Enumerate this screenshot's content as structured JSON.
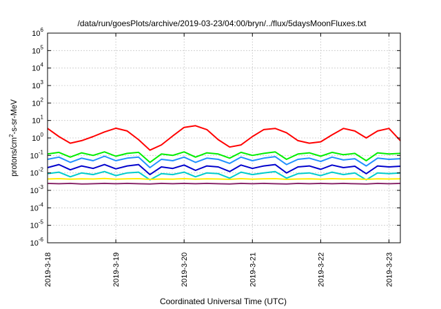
{
  "chart_data": {
    "type": "line",
    "title": "/data/run/goesPlots/archive/2019-03-23/04:00/bryn/../flux/5daysMoonFluxes.txt",
    "xlabel": "Coordinated Universal Time (UTC)",
    "ylabel_main": "protons/cm",
    "ylabel_sup": "2",
    "ylabel_tail": "-s-sr-MeV",
    "yscale": "log",
    "ylim": [
      1e-06,
      1000000.0
    ],
    "xlim": [
      "2019-03-18T00:00",
      "2019-03-23T04:00"
    ],
    "grid": true,
    "y_ticks": [
      {
        "exp": -6,
        "base": "10",
        "sup": "-6"
      },
      {
        "exp": -5,
        "base": "10",
        "sup": "-5"
      },
      {
        "exp": -4,
        "base": "10",
        "sup": "-4"
      },
      {
        "exp": -3,
        "base": "10",
        "sup": "-3"
      },
      {
        "exp": -2,
        "base": "10",
        "sup": "-2"
      },
      {
        "exp": -1,
        "base": "10",
        "sup": "-1"
      },
      {
        "exp": 0,
        "base": "10",
        "sup": "0"
      },
      {
        "exp": 1,
        "base": "10",
        "sup": "1"
      },
      {
        "exp": 2,
        "base": "10",
        "sup": "2"
      },
      {
        "exp": 3,
        "base": "10",
        "sup": "3"
      },
      {
        "exp": 4,
        "base": "10",
        "sup": "4"
      },
      {
        "exp": 5,
        "base": "10",
        "sup": "5"
      },
      {
        "exp": 6,
        "base": "10",
        "sup": "6"
      }
    ],
    "x_ticks": [
      {
        "day": 0,
        "label": "2019-3-18"
      },
      {
        "day": 1,
        "label": "2019-3-19"
      },
      {
        "day": 2,
        "label": "2019-3-20"
      },
      {
        "day": 3,
        "label": "2019-3-21"
      },
      {
        "day": 4,
        "label": "2019-3-22"
      },
      {
        "day": 5,
        "label": "2019-3-23"
      }
    ],
    "series": [
      {
        "color": "#ff0000",
        "x": [
          "2019-03-18T00:00",
          "2019-03-18T04:00",
          "2019-03-18T08:00",
          "2019-03-18T12:00",
          "2019-03-18T16:00",
          "2019-03-18T20:00",
          "2019-03-19T00:00",
          "2019-03-19T04:00",
          "2019-03-19T08:00",
          "2019-03-19T12:00",
          "2019-03-19T16:00",
          "2019-03-19T20:00",
          "2019-03-20T00:00",
          "2019-03-20T04:00",
          "2019-03-20T08:00",
          "2019-03-20T12:00",
          "2019-03-20T16:00",
          "2019-03-20T20:00",
          "2019-03-21T00:00",
          "2019-03-21T04:00",
          "2019-03-21T08:00",
          "2019-03-21T12:00",
          "2019-03-21T16:00",
          "2019-03-21T20:00",
          "2019-03-22T00:00",
          "2019-03-22T04:00",
          "2019-03-22T08:00",
          "2019-03-22T12:00",
          "2019-03-22T16:00",
          "2019-03-22T20:00",
          "2019-03-23T00:00",
          "2019-03-23T04:00"
        ],
        "y": [
          3.5,
          1.2,
          0.5,
          0.7,
          1.2,
          2.2,
          3.6,
          2.5,
          0.8,
          0.2,
          0.4,
          1.3,
          4.0,
          5.0,
          3.0,
          0.8,
          0.3,
          0.4,
          1.2,
          3.0,
          3.5,
          2.0,
          0.7,
          0.5,
          0.6,
          1.5,
          3.5,
          2.5,
          1.0,
          2.5,
          3.5,
          0.7
        ]
      },
      {
        "color": "#00ee00",
        "x": [
          "2019-03-18T00:00",
          "2019-03-18T04:00",
          "2019-03-18T08:00",
          "2019-03-18T12:00",
          "2019-03-18T16:00",
          "2019-03-18T20:00",
          "2019-03-19T00:00",
          "2019-03-19T04:00",
          "2019-03-19T08:00",
          "2019-03-19T12:00",
          "2019-03-19T16:00",
          "2019-03-19T20:00",
          "2019-03-20T00:00",
          "2019-03-20T04:00",
          "2019-03-20T08:00",
          "2019-03-20T12:00",
          "2019-03-20T16:00",
          "2019-03-20T20:00",
          "2019-03-21T00:00",
          "2019-03-21T04:00",
          "2019-03-21T08:00",
          "2019-03-21T12:00",
          "2019-03-21T16:00",
          "2019-03-21T20:00",
          "2019-03-22T00:00",
          "2019-03-22T04:00",
          "2019-03-22T08:00",
          "2019-03-22T12:00",
          "2019-03-22T16:00",
          "2019-03-22T20:00",
          "2019-03-23T00:00",
          "2019-03-23T04:00"
        ],
        "y": [
          0.12,
          0.15,
          0.08,
          0.14,
          0.1,
          0.16,
          0.09,
          0.13,
          0.15,
          0.04,
          0.12,
          0.1,
          0.16,
          0.08,
          0.14,
          0.12,
          0.07,
          0.15,
          0.1,
          0.13,
          0.16,
          0.06,
          0.12,
          0.14,
          0.09,
          0.15,
          0.11,
          0.13,
          0.05,
          0.14,
          0.12,
          0.13
        ]
      },
      {
        "color": "#1e90ff",
        "x": [
          "2019-03-18T00:00",
          "2019-03-18T04:00",
          "2019-03-18T08:00",
          "2019-03-18T12:00",
          "2019-03-18T16:00",
          "2019-03-18T20:00",
          "2019-03-19T00:00",
          "2019-03-19T04:00",
          "2019-03-19T08:00",
          "2019-03-19T12:00",
          "2019-03-19T16:00",
          "2019-03-19T20:00",
          "2019-03-20T00:00",
          "2019-03-20T04:00",
          "2019-03-20T08:00",
          "2019-03-20T12:00",
          "2019-03-20T16:00",
          "2019-03-20T20:00",
          "2019-03-21T00:00",
          "2019-03-21T04:00",
          "2019-03-21T08:00",
          "2019-03-21T12:00",
          "2019-03-21T16:00",
          "2019-03-21T20:00",
          "2019-03-22T00:00",
          "2019-03-22T04:00",
          "2019-03-22T08:00",
          "2019-03-22T12:00",
          "2019-03-22T16:00",
          "2019-03-22T20:00",
          "2019-03-23T00:00",
          "2019-03-23T04:00"
        ],
        "y": [
          0.06,
          0.08,
          0.04,
          0.07,
          0.05,
          0.09,
          0.05,
          0.07,
          0.08,
          0.02,
          0.06,
          0.05,
          0.08,
          0.04,
          0.07,
          0.06,
          0.035,
          0.08,
          0.05,
          0.07,
          0.085,
          0.03,
          0.06,
          0.07,
          0.045,
          0.08,
          0.055,
          0.065,
          0.025,
          0.07,
          0.06,
          0.065
        ]
      },
      {
        "color": "#0000cc",
        "x": [
          "2019-03-18T00:00",
          "2019-03-18T04:00",
          "2019-03-18T08:00",
          "2019-03-18T12:00",
          "2019-03-18T16:00",
          "2019-03-18T20:00",
          "2019-03-19T00:00",
          "2019-03-19T04:00",
          "2019-03-19T08:00",
          "2019-03-19T12:00",
          "2019-03-19T16:00",
          "2019-03-19T20:00",
          "2019-03-20T00:00",
          "2019-03-20T04:00",
          "2019-03-20T08:00",
          "2019-03-20T12:00",
          "2019-03-20T16:00",
          "2019-03-20T20:00",
          "2019-03-21T00:00",
          "2019-03-21T04:00",
          "2019-03-21T08:00",
          "2019-03-21T12:00",
          "2019-03-21T16:00",
          "2019-03-21T20:00",
          "2019-03-22T00:00",
          "2019-03-22T04:00",
          "2019-03-22T08:00",
          "2019-03-22T12:00",
          "2019-03-22T16:00",
          "2019-03-22T20:00",
          "2019-03-23T00:00",
          "2019-03-23T04:00"
        ],
        "y": [
          0.02,
          0.03,
          0.015,
          0.025,
          0.018,
          0.03,
          0.017,
          0.025,
          0.03,
          0.008,
          0.022,
          0.018,
          0.028,
          0.014,
          0.025,
          0.022,
          0.012,
          0.028,
          0.018,
          0.025,
          0.03,
          0.01,
          0.022,
          0.025,
          0.016,
          0.028,
          0.02,
          0.024,
          0.009,
          0.025,
          0.022,
          0.024
        ]
      },
      {
        "color": "#00cccc",
        "x": [
          "2019-03-18T00:00",
          "2019-03-18T04:00",
          "2019-03-18T08:00",
          "2019-03-18T12:00",
          "2019-03-18T16:00",
          "2019-03-18T20:00",
          "2019-03-19T00:00",
          "2019-03-19T04:00",
          "2019-03-19T08:00",
          "2019-03-19T12:00",
          "2019-03-19T16:00",
          "2019-03-19T20:00",
          "2019-03-20T00:00",
          "2019-03-20T04:00",
          "2019-03-20T08:00",
          "2019-03-20T12:00",
          "2019-03-20T16:00",
          "2019-03-20T20:00",
          "2019-03-21T00:00",
          "2019-03-21T04:00",
          "2019-03-21T08:00",
          "2019-03-21T12:00",
          "2019-03-21T16:00",
          "2019-03-21T20:00",
          "2019-03-22T00:00",
          "2019-03-22T04:00",
          "2019-03-22T08:00",
          "2019-03-22T12:00",
          "2019-03-22T16:00",
          "2019-03-22T20:00",
          "2019-03-23T00:00",
          "2019-03-23T04:00"
        ],
        "y": [
          0.009,
          0.011,
          0.006,
          0.01,
          0.008,
          0.012,
          0.007,
          0.01,
          0.011,
          0.004,
          0.009,
          0.008,
          0.011,
          0.006,
          0.01,
          0.009,
          0.005,
          0.011,
          0.008,
          0.01,
          0.012,
          0.005,
          0.009,
          0.01,
          0.007,
          0.011,
          0.008,
          0.01,
          0.004,
          0.01,
          0.009,
          0.01
        ]
      },
      {
        "color": "#ffee00",
        "x": [
          "2019-03-18T00:00",
          "2019-03-18T04:00",
          "2019-03-18T08:00",
          "2019-03-18T12:00",
          "2019-03-18T16:00",
          "2019-03-18T20:00",
          "2019-03-19T00:00",
          "2019-03-19T04:00",
          "2019-03-19T08:00",
          "2019-03-19T12:00",
          "2019-03-19T16:00",
          "2019-03-19T20:00",
          "2019-03-20T00:00",
          "2019-03-20T04:00",
          "2019-03-20T08:00",
          "2019-03-20T12:00",
          "2019-03-20T16:00",
          "2019-03-20T20:00",
          "2019-03-21T00:00",
          "2019-03-21T04:00",
          "2019-03-21T08:00",
          "2019-03-21T12:00",
          "2019-03-21T16:00",
          "2019-03-21T20:00",
          "2019-03-22T00:00",
          "2019-03-22T04:00",
          "2019-03-22T08:00",
          "2019-03-22T12:00",
          "2019-03-22T16:00",
          "2019-03-22T20:00",
          "2019-03-23T00:00",
          "2019-03-23T04:00"
        ],
        "y": [
          0.0045,
          0.0047,
          0.0044,
          0.0046,
          0.0045,
          0.0048,
          0.0044,
          0.0046,
          0.0047,
          0.0043,
          0.0045,
          0.0044,
          0.0047,
          0.0044,
          0.0046,
          0.0045,
          0.0043,
          0.0047,
          0.0044,
          0.0046,
          0.0047,
          0.0043,
          0.0045,
          0.0046,
          0.0044,
          0.0047,
          0.0045,
          0.0046,
          0.0043,
          0.0046,
          0.0045,
          0.0046
        ]
      },
      {
        "color": "#8b2a6b",
        "x": [
          "2019-03-18T00:00",
          "2019-03-18T04:00",
          "2019-03-18T08:00",
          "2019-03-18T12:00",
          "2019-03-18T16:00",
          "2019-03-18T20:00",
          "2019-03-19T00:00",
          "2019-03-19T04:00",
          "2019-03-19T08:00",
          "2019-03-19T12:00",
          "2019-03-19T16:00",
          "2019-03-19T20:00",
          "2019-03-20T00:00",
          "2019-03-20T04:00",
          "2019-03-20T08:00",
          "2019-03-20T12:00",
          "2019-03-20T16:00",
          "2019-03-20T20:00",
          "2019-03-21T00:00",
          "2019-03-21T04:00",
          "2019-03-21T08:00",
          "2019-03-21T12:00",
          "2019-03-21T16:00",
          "2019-03-21T20:00",
          "2019-03-22T00:00",
          "2019-03-22T04:00",
          "2019-03-22T08:00",
          "2019-03-22T12:00",
          "2019-03-22T16:00",
          "2019-03-22T20:00",
          "2019-03-23T00:00",
          "2019-03-23T04:00"
        ],
        "y": [
          0.0025,
          0.0024,
          0.0025,
          0.0023,
          0.0024,
          0.0025,
          0.0024,
          0.0025,
          0.0024,
          0.0023,
          0.0025,
          0.0024,
          0.0025,
          0.0024,
          0.0025,
          0.0024,
          0.0023,
          0.0025,
          0.0024,
          0.0025,
          0.0024,
          0.0023,
          0.0025,
          0.0024,
          0.0025,
          0.0024,
          0.0025,
          0.0024,
          0.0023,
          0.0025,
          0.0024,
          0.0025
        ]
      }
    ]
  }
}
